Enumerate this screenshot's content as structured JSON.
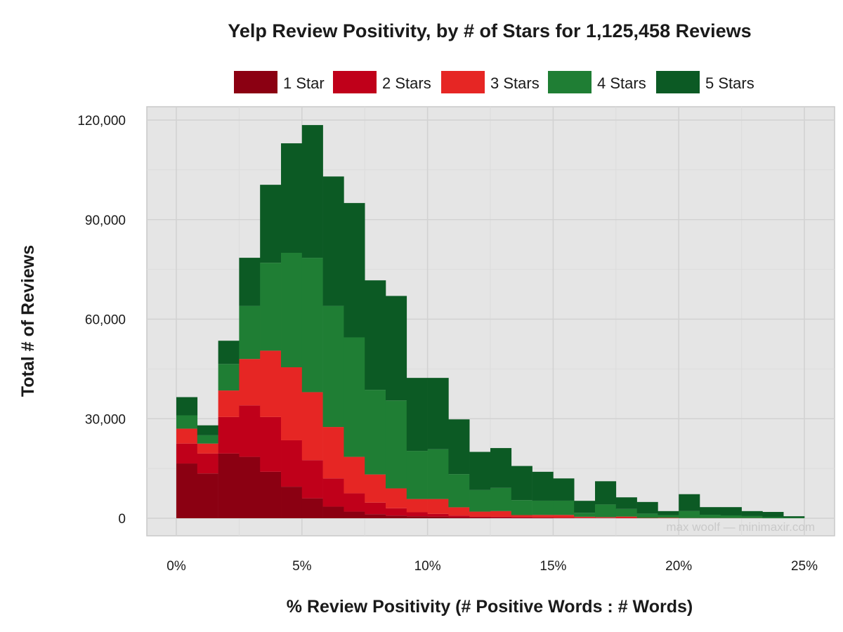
{
  "chart_data": {
    "type": "bar",
    "subtype": "stacked-histogram",
    "title": "Yelp Review Positivity, by # of Stars for 1,125,458 Reviews",
    "xlabel": "% Review Positivity (# Positive Words : # Words)",
    "ylabel": "Total # of Reviews",
    "x_tick_labels": [
      "0%",
      "5%",
      "10%",
      "15%",
      "20%",
      "25%"
    ],
    "x_ticks": [
      0,
      5,
      10,
      15,
      20,
      25
    ],
    "xlim": [
      0,
      25
    ],
    "y_tick_labels": [
      "0",
      "30,000",
      "60,000",
      "90,000",
      "120,000"
    ],
    "y_ticks": [
      0,
      30000,
      60000,
      90000,
      120000
    ],
    "ylim": [
      0,
      120000
    ],
    "grid": true,
    "legend_position": "top",
    "bin_width": 0.833,
    "bins": [
      0,
      0.833,
      1.667,
      2.5,
      3.333,
      4.167,
      5.0,
      5.833,
      6.667,
      7.5,
      8.333,
      9.167,
      10.0,
      10.833,
      11.667,
      12.5,
      13.333,
      14.167,
      15.0,
      15.833,
      16.667,
      17.5,
      18.333,
      19.167,
      20.0,
      20.833,
      21.667,
      22.5,
      23.333,
      24.167
    ],
    "series": [
      {
        "name": "1 Star",
        "color": "#8b0012",
        "values": [
          16500,
          13500,
          19500,
          18500,
          14000,
          9500,
          6000,
          3500,
          2000,
          1200,
          800,
          600,
          500,
          300,
          200,
          150,
          100,
          100,
          50,
          50,
          50,
          0,
          0,
          0,
          0,
          0,
          0,
          0,
          0,
          0
        ]
      },
      {
        "name": "2 Stars",
        "color": "#c0001a",
        "values": [
          6000,
          6000,
          11000,
          15500,
          16500,
          14000,
          11500,
          8500,
          5500,
          3500,
          2200,
          1200,
          800,
          500,
          300,
          300,
          250,
          150,
          150,
          100,
          100,
          100,
          0,
          0,
          0,
          0,
          0,
          0,
          0,
          0
        ]
      },
      {
        "name": "3 Stars",
        "color": "#e62624",
        "values": [
          4500,
          3000,
          8000,
          14000,
          20000,
          22000,
          20500,
          15500,
          11000,
          8500,
          6000,
          4000,
          4500,
          2500,
          1500,
          1700,
          600,
          750,
          800,
          300,
          200,
          400,
          100,
          150,
          50,
          50,
          50,
          50,
          0,
          0
        ]
      },
      {
        "name": "4 Stars",
        "color": "#1f7e34",
        "values": [
          4000,
          2500,
          8000,
          16000,
          26500,
          34500,
          40500,
          36500,
          36000,
          25500,
          26500,
          14500,
          15000,
          10000,
          6500,
          7000,
          4500,
          4300,
          4300,
          1200,
          3800,
          2300,
          1300,
          800,
          2100,
          1000,
          800,
          600,
          300,
          200
        ]
      },
      {
        "name": "5 Stars",
        "color": "#0c5a24",
        "values": [
          5500,
          3000,
          7000,
          14500,
          23500,
          33000,
          40000,
          39000,
          40500,
          33000,
          31500,
          22000,
          21500,
          16500,
          11500,
          12000,
          10300,
          8700,
          6700,
          3600,
          7000,
          3500,
          3500,
          1200,
          5100,
          2300,
          2500,
          1500,
          1600,
          400
        ]
      }
    ]
  },
  "watermark": "max woolf — minimaxir.com"
}
